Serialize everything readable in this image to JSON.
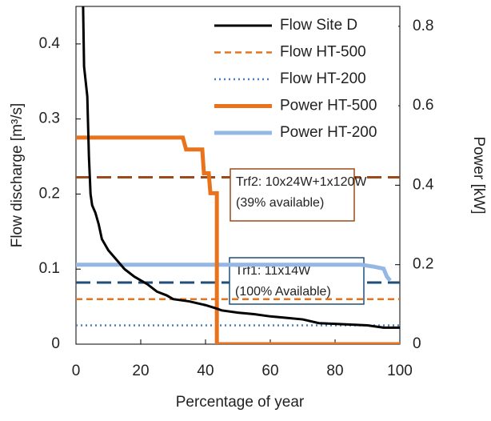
{
  "chart_data": {
    "type": "line",
    "x_label": "Percentage of year",
    "y_label": "Flow discharge [m³/s]",
    "y2_label": "Power [kW]",
    "xlim": [
      0,
      100
    ],
    "xticks": [
      0,
      20,
      40,
      60,
      80,
      100
    ],
    "ylim": [
      0,
      0.45
    ],
    "yticks": [
      0,
      0.1,
      0.2,
      0.3,
      0.4
    ],
    "y2lim": [
      0,
      0.85
    ],
    "y2ticks": [
      0,
      0.2,
      0.4,
      0.6,
      0.8
    ],
    "grid": false,
    "legend": "upper right",
    "series": [
      {
        "name": "Flow Site D",
        "color": "#000000",
        "style": "solid",
        "width": 3,
        "axis": "y",
        "x": [
          2.2,
          2.5,
          3.5,
          4,
          4.5,
          5,
          6,
          7,
          8,
          10,
          12,
          15,
          18,
          20,
          22,
          25,
          28,
          30,
          35,
          40,
          43,
          45,
          50,
          55,
          60,
          65,
          70,
          75,
          80,
          90,
          95,
          100
        ],
        "values": [
          0.45,
          0.37,
          0.33,
          0.25,
          0.2,
          0.185,
          0.175,
          0.16,
          0.14,
          0.125,
          0.115,
          0.1,
          0.09,
          0.085,
          0.08,
          0.07,
          0.065,
          0.06,
          0.057,
          0.052,
          0.048,
          0.045,
          0.042,
          0.04,
          0.037,
          0.035,
          0.033,
          0.028,
          0.027,
          0.025,
          0.022,
          0.022
        ]
      },
      {
        "name": "Flow HT-500",
        "color": "#e8731c",
        "style": "dashed",
        "width": 2.5,
        "axis": "y",
        "x": [
          0,
          100
        ],
        "values": [
          0.06,
          0.06
        ]
      },
      {
        "name": "Flow HT-200",
        "color": "#4a7ebb",
        "style": "dotted",
        "width": 2.5,
        "axis": "y",
        "x": [
          0,
          100
        ],
        "values": [
          0.025,
          0.025
        ]
      },
      {
        "name": "Power HT-500",
        "color": "#e8731c",
        "style": "solid",
        "width": 5,
        "axis": "y2",
        "x": [
          0,
          33,
          34,
          39,
          39.5,
          41,
          41.5,
          43.5,
          43.5,
          100
        ],
        "values": [
          0.52,
          0.52,
          0.49,
          0.49,
          0.43,
          0.43,
          0.38,
          0.38,
          0,
          0
        ]
      },
      {
        "name": "Power HT-200",
        "color": "#94b8e3",
        "style": "solid",
        "width": 5,
        "axis": "y2",
        "x": [
          0,
          88,
          92,
          95,
          96,
          97
        ],
        "values": [
          0.2,
          0.2,
          0.195,
          0.19,
          0.17,
          0.16
        ]
      }
    ],
    "reference_lines": [
      {
        "label": [
          "Trf2: 10x24W+1x120W",
          "(39% available)"
        ],
        "value": 0.42,
        "color": "#9c4a1a",
        "axis": "y2"
      },
      {
        "label": [
          "Trf1: 11x14W",
          "(100% Available)"
        ],
        "value": 0.155,
        "color": "#1f4e79",
        "axis": "y2"
      }
    ]
  }
}
